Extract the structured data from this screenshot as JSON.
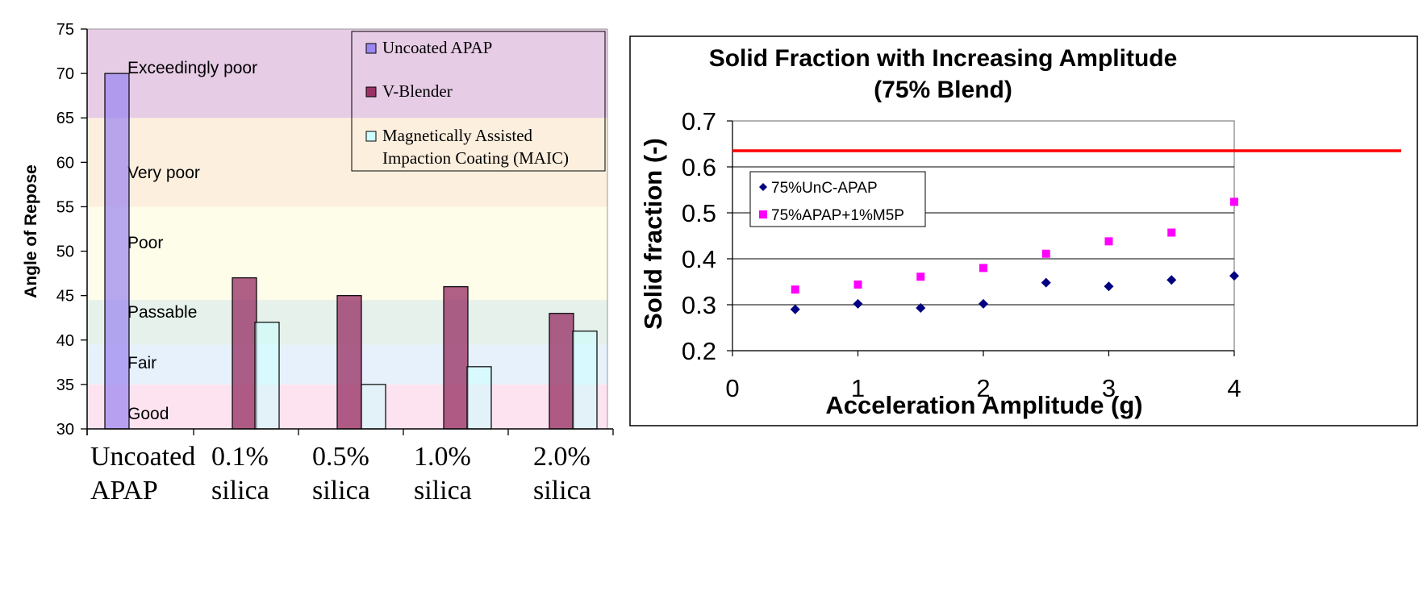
{
  "chart_data": [
    {
      "type": "bar",
      "title": "",
      "ylabel": "Angle of Repose",
      "xlabel": "",
      "ylim": [
        30,
        75
      ],
      "yticks": [
        30,
        35,
        40,
        45,
        50,
        55,
        60,
        65,
        70,
        75
      ],
      "categories": [
        [
          "Uncoated",
          "APAP"
        ],
        [
          "0.1%",
          "silica"
        ],
        [
          "0.5%",
          "silica"
        ],
        [
          "1.0%",
          "silica"
        ],
        [
          "2.0%",
          "silica"
        ]
      ],
      "series": [
        {
          "name": "Uncoated APAP",
          "color": "#9b87f0",
          "values": [
            70,
            null,
            null,
            null,
            null
          ]
        },
        {
          "name": "V-Blender",
          "color": "#993366",
          "values": [
            null,
            47,
            45,
            46,
            43
          ]
        },
        {
          "name": "Magnetically Assisted Impaction Coating (MAIC)",
          "color": "#ccffff",
          "values": [
            null,
            42,
            35,
            37,
            41
          ]
        }
      ],
      "legend_lines": [
        [
          "Uncoated APAP"
        ],
        [
          "V-Blender"
        ],
        [
          "Magnetically Assisted",
          "Impaction Coating (MAIC)"
        ]
      ],
      "legend_position": "top-right",
      "bands": [
        {
          "label": "Good",
          "from": 30,
          "to": 35,
          "color": "#fde3f0"
        },
        {
          "label": "Fair",
          "from": 35,
          "to": 39.5,
          "color": "#e6f1fb"
        },
        {
          "label": "Passable",
          "from": 39.5,
          "to": 44.5,
          "color": "#e5f1ea"
        },
        {
          "label": "Poor",
          "from": 44.5,
          "to": 55,
          "color": "#fefdea"
        },
        {
          "label": "Very poor",
          "from": 55,
          "to": 65,
          "color": "#fdefde"
        },
        {
          "label": "Exceedingly poor",
          "from": 65,
          "to": 75,
          "color": "#e7cce6"
        }
      ]
    },
    {
      "type": "scatter",
      "title": "Solid Fraction with Increasing Amplitude",
      "subtitle": "(75% Blend)",
      "xlabel": "Acceleration Amplitude (g)",
      "ylabel": "Solid fraction (-)",
      "xlim": [
        0,
        4
      ],
      "ylim": [
        0.2,
        0.7
      ],
      "xticks": [
        0,
        1,
        2,
        3,
        4
      ],
      "yticks": [
        0.2,
        0.3,
        0.4,
        0.5,
        0.6,
        0.7
      ],
      "grid": "horizontal",
      "legend_position": "upper-left",
      "reference_line": {
        "y": 0.635,
        "color": "#ff0000"
      },
      "series": [
        {
          "name": "75%UnC-APAP",
          "marker": "diamond",
          "color": "#000080",
          "x": [
            0.5,
            1.0,
            1.5,
            2.0,
            2.5,
            3.0,
            3.5,
            4.0
          ],
          "y": [
            0.29,
            0.302,
            0.293,
            0.302,
            0.348,
            0.34,
            0.354,
            0.363
          ]
        },
        {
          "name": "75%APAP+1%M5P",
          "marker": "square",
          "color": "#ff00ff",
          "x": [
            0.5,
            1.0,
            1.5,
            2.0,
            2.5,
            3.0,
            3.5,
            4.0
          ],
          "y": [
            0.333,
            0.344,
            0.361,
            0.38,
            0.411,
            0.438,
            0.457,
            0.524
          ]
        }
      ]
    }
  ]
}
